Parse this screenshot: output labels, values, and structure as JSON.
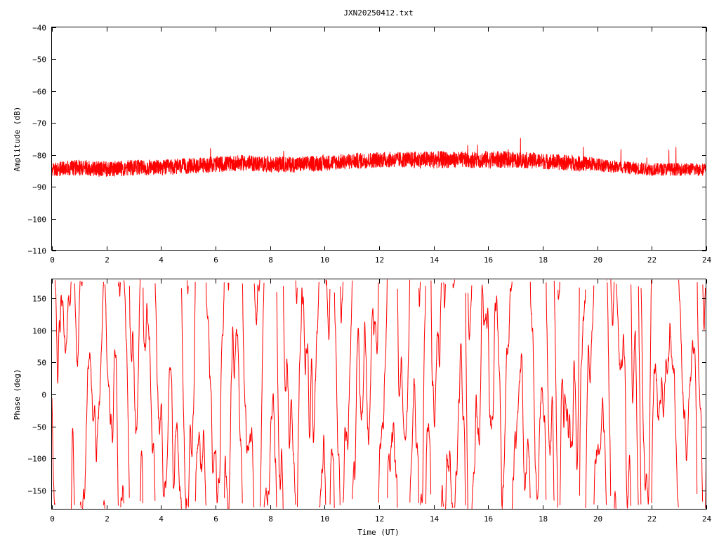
{
  "title": "JXN20250412.txt",
  "colors": {
    "trace": "#ff0000",
    "axes": "#000000",
    "background": "#ffffff"
  },
  "chart_data": [
    {
      "type": "line",
      "panel": "top",
      "title": "JXN20250412.txt",
      "xlabel": "",
      "ylabel": "Amplitude (dB)",
      "xlim": [
        0,
        24
      ],
      "ylim": [
        -110,
        -40
      ],
      "xticks": [
        0,
        2,
        4,
        6,
        8,
        10,
        12,
        14,
        16,
        18,
        20,
        22,
        24
      ],
      "yticks": [
        -110,
        -100,
        -90,
        -80,
        -70,
        -60,
        -50,
        -40
      ],
      "xtick_labels": [
        "0",
        "2",
        "4",
        "6",
        "8",
        "10",
        "12",
        "14",
        "16",
        "18",
        "20",
        "22",
        "24"
      ],
      "ytick_labels": [
        "−110",
        "−100",
        "−90",
        "−80",
        "−70",
        "−60",
        "−50",
        "−40"
      ],
      "grid": false,
      "series": [
        {
          "color": "#ff0000",
          "x": [
            0,
            1,
            2,
            3,
            4,
            5,
            6,
            7,
            8,
            9,
            10,
            11,
            12,
            13,
            14,
            15,
            16,
            17,
            18,
            19,
            20,
            21,
            22,
            23,
            24
          ],
          "y": [
            -84.5,
            -84,
            -84.5,
            -84,
            -84,
            -83.5,
            -83,
            -82.5,
            -83,
            -83,
            -82.5,
            -82,
            -81.5,
            -81.5,
            -81.5,
            -81.5,
            -81.5,
            -81.5,
            -82,
            -82.5,
            -83,
            -84,
            -84.5,
            -84.5,
            -84.5
          ],
          "noise": [
            2.2,
            2.5,
            2.5,
            2.5,
            2.5,
            2.5,
            2.5,
            2.5,
            2.5,
            2.5,
            2.5,
            2.5,
            2.5,
            2.5,
            2.8,
            2.5,
            2.8,
            2.5,
            2.5,
            2.5,
            2.2,
            2.0,
            2.0,
            2.0,
            2.0
          ]
        }
      ]
    },
    {
      "type": "line",
      "panel": "bottom",
      "xlabel": "Time (UT)",
      "ylabel": "Phase (deg)",
      "xlim": [
        0,
        24
      ],
      "ylim": [
        -180,
        180
      ],
      "xticks": [
        0,
        2,
        4,
        6,
        8,
        10,
        12,
        14,
        16,
        18,
        20,
        22,
        24
      ],
      "yticks": [
        -150,
        -100,
        -50,
        0,
        50,
        100,
        150
      ],
      "xtick_labels": [
        "0",
        "2",
        "4",
        "6",
        "8",
        "10",
        "12",
        "14",
        "16",
        "18",
        "20",
        "22",
        "24"
      ],
      "ytick_labels": [
        "−150",
        "−100",
        "−50",
        "0",
        "50",
        "100",
        "150"
      ],
      "grid": false,
      "series": [
        {
          "color": "#ff0000",
          "wrap": [
            -180,
            180
          ]
        }
      ]
    }
  ]
}
